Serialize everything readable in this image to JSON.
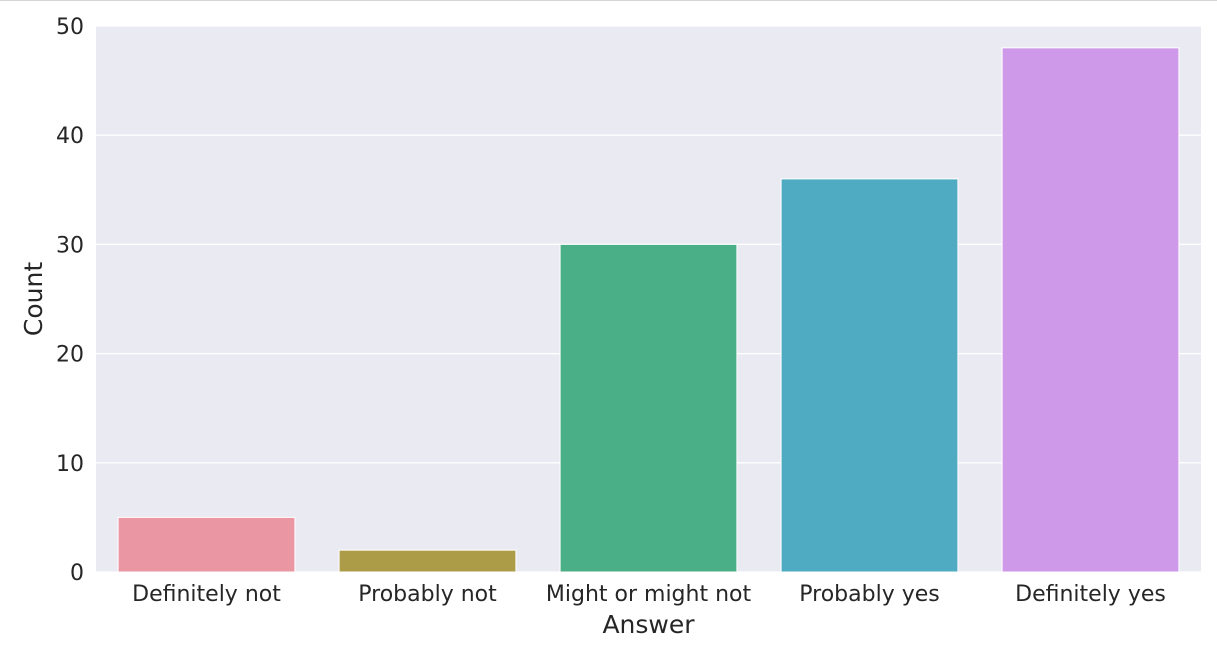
{
  "chart_data": {
    "type": "bar",
    "title": "",
    "xlabel": "Answer",
    "ylabel": "Count",
    "categories": [
      "Definitely not",
      "Probably not",
      "Might or might not",
      "Probably yes",
      "Definitely yes"
    ],
    "values": [
      5,
      2,
      30,
      36,
      48
    ],
    "colors": [
      "#ea96a3",
      "#ad9c47",
      "#4aae86",
      "#4eabc1",
      "#cd99e8"
    ],
    "ylim": [
      0,
      50
    ],
    "yticks": [
      0,
      10,
      20,
      30,
      40,
      50
    ],
    "grid": true,
    "background_color": "#eaeaf2",
    "grid_color": "#ffffff",
    "legend": "none"
  }
}
